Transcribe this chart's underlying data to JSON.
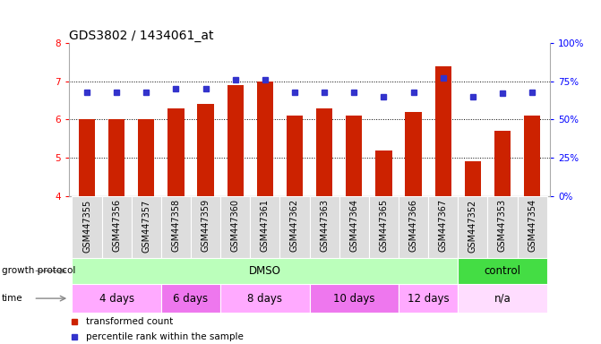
{
  "title": "GDS3802 / 1434061_at",
  "samples": [
    "GSM447355",
    "GSM447356",
    "GSM447357",
    "GSM447358",
    "GSM447359",
    "GSM447360",
    "GSM447361",
    "GSM447362",
    "GSM447363",
    "GSM447364",
    "GSM447365",
    "GSM447366",
    "GSM447367",
    "GSM447352",
    "GSM447353",
    "GSM447354"
  ],
  "transformed_count": [
    6.0,
    6.0,
    6.0,
    6.3,
    6.4,
    6.9,
    7.0,
    6.1,
    6.3,
    6.1,
    5.2,
    6.2,
    7.4,
    4.9,
    5.7,
    6.1
  ],
  "percentile_rank": [
    68,
    68,
    68,
    70,
    70,
    76,
    76,
    68,
    68,
    68,
    65,
    68,
    77,
    65,
    67,
    68
  ],
  "ylim_left": [
    4,
    8
  ],
  "ylim_right": [
    0,
    100
  ],
  "yticks_left": [
    4,
    5,
    6,
    7,
    8
  ],
  "yticks_right": [
    0,
    25,
    50,
    75,
    100
  ],
  "bar_color": "#cc2200",
  "dot_color": "#3333cc",
  "grid_color": "#000000",
  "bg_color": "#ffffff",
  "protocol_groups": [
    {
      "label": "DMSO",
      "start": 0,
      "end": 13,
      "color": "#bbffbb"
    },
    {
      "label": "control",
      "start": 13,
      "end": 16,
      "color": "#44dd44"
    }
  ],
  "time_groups": [
    {
      "label": "4 days",
      "start": 0,
      "end": 3,
      "color": "#ffaaff"
    },
    {
      "label": "6 days",
      "start": 3,
      "end": 5,
      "color": "#ee77ee"
    },
    {
      "label": "8 days",
      "start": 5,
      "end": 8,
      "color": "#ffaaff"
    },
    {
      "label": "10 days",
      "start": 8,
      "end": 11,
      "color": "#ee77ee"
    },
    {
      "label": "12 days",
      "start": 11,
      "end": 13,
      "color": "#ffaaff"
    },
    {
      "label": "n/a",
      "start": 13,
      "end": 16,
      "color": "#ffddff"
    }
  ],
  "label_fontsize": 7.0,
  "tick_label_fontsize": 7.5,
  "title_fontsize": 10,
  "row_fontsize": 8.5
}
